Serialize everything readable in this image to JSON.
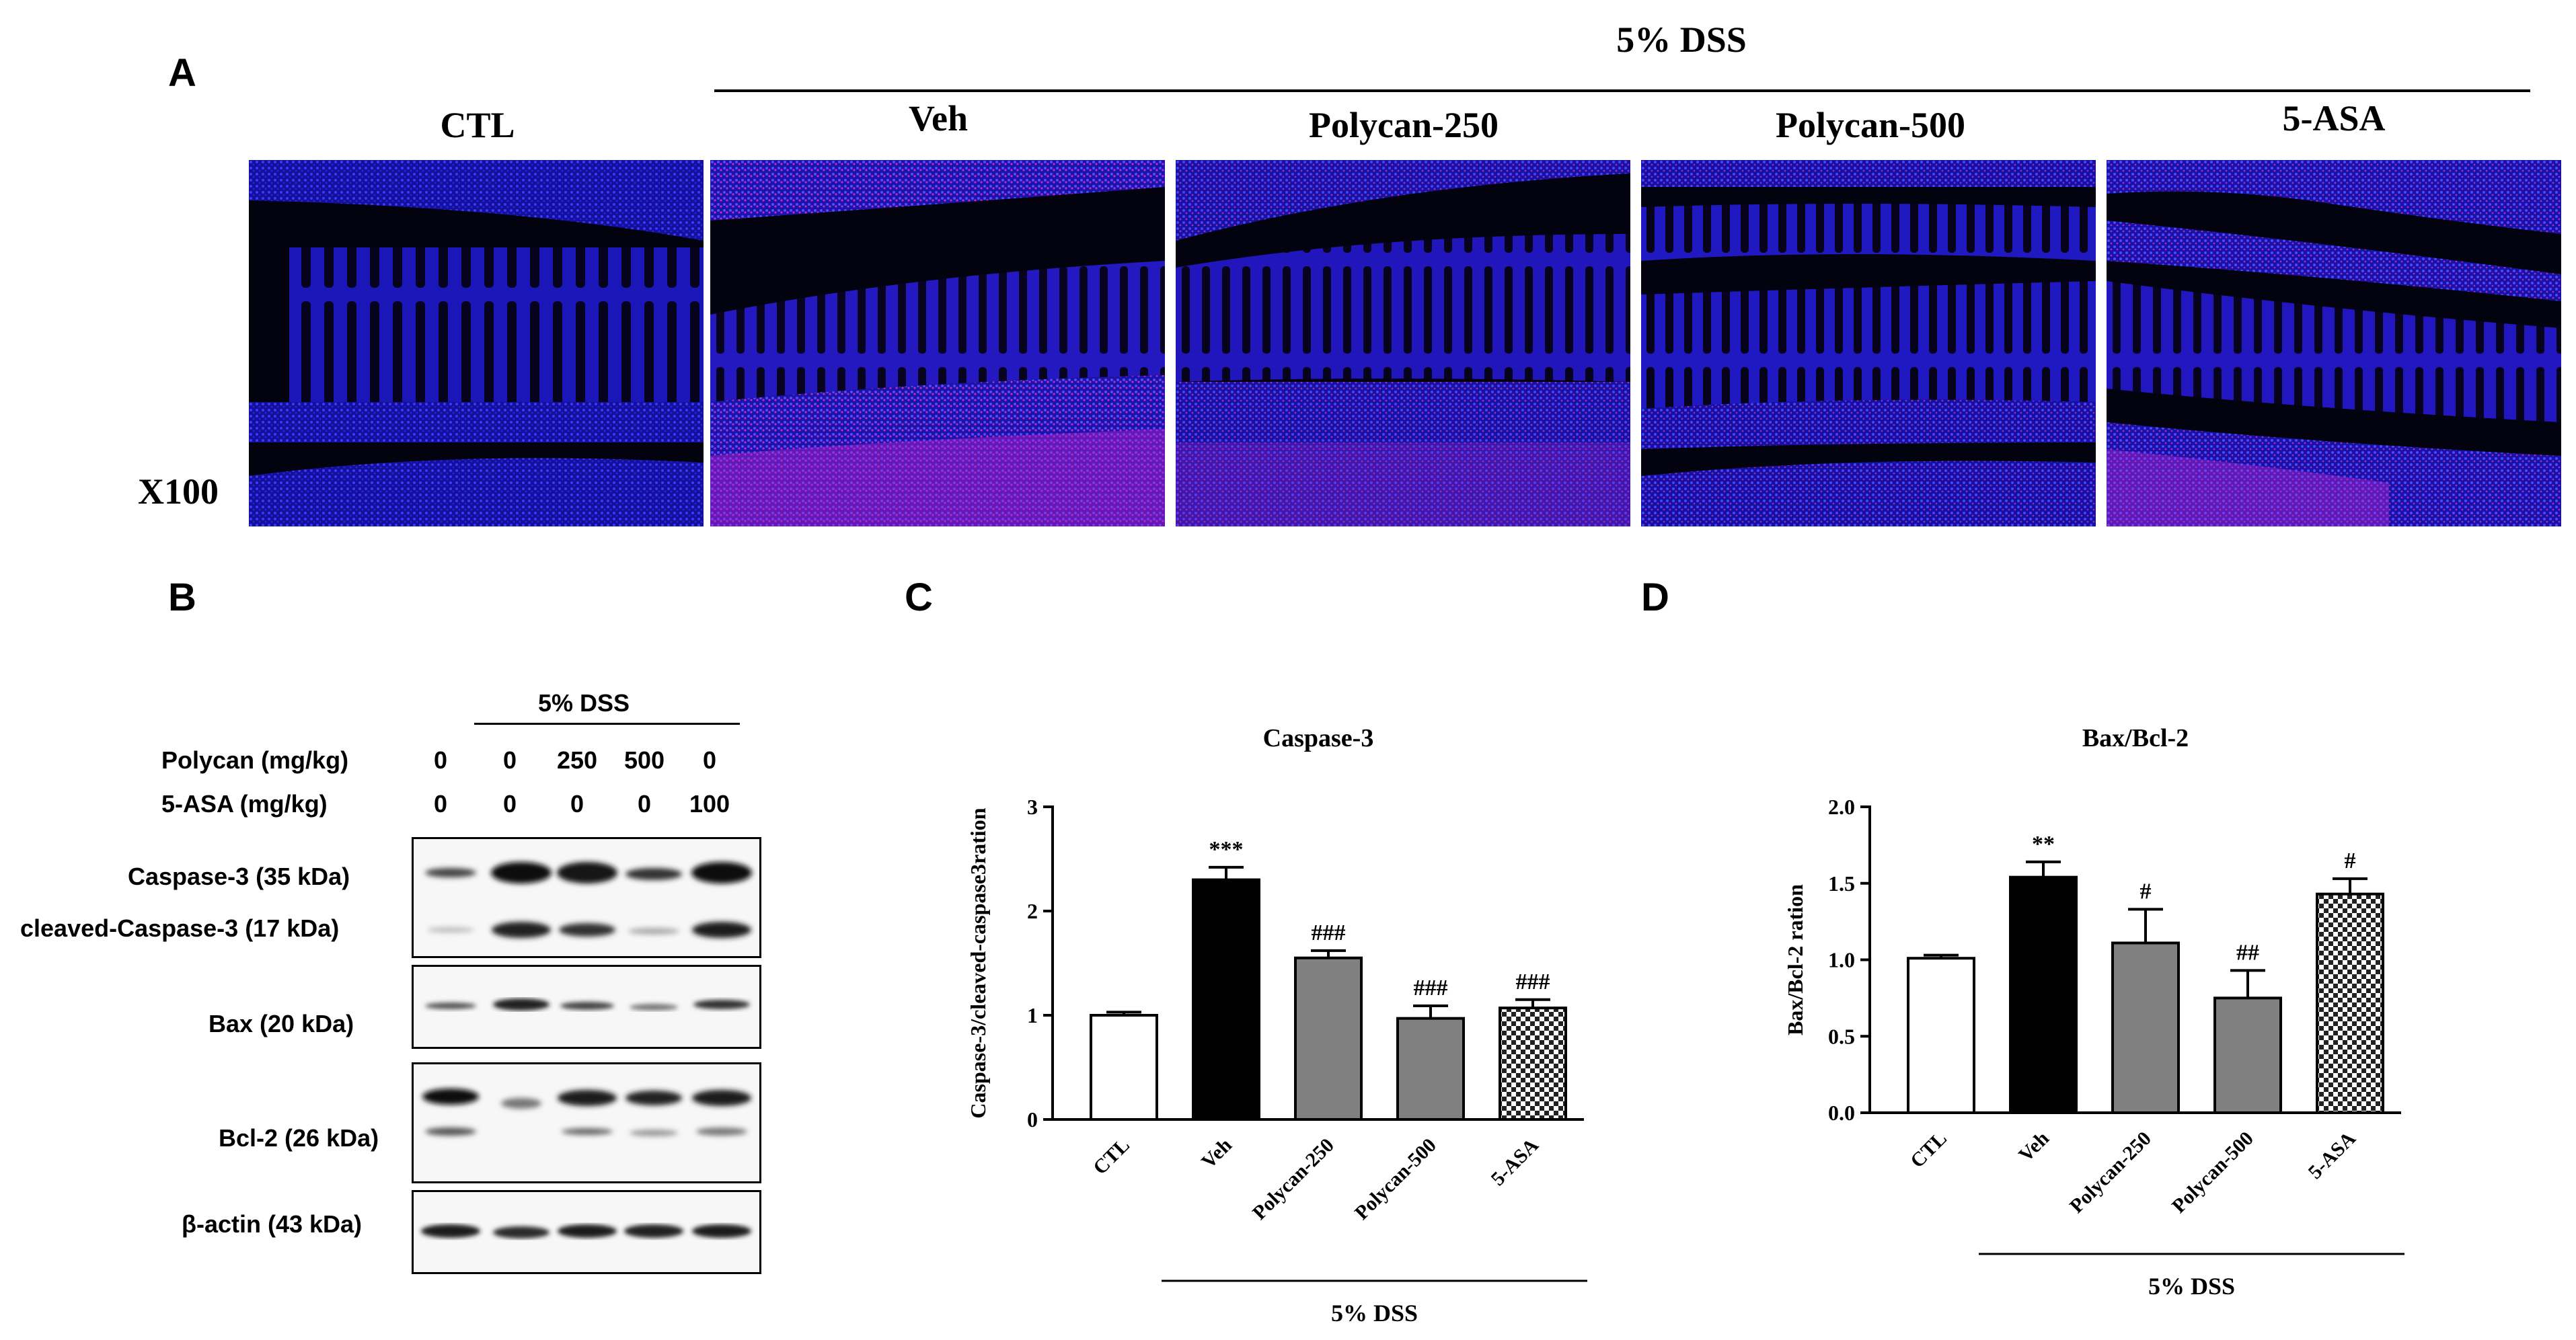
{
  "panels": {
    "a": "A",
    "b": "B",
    "c": "C",
    "d": "D"
  },
  "panel_a": {
    "dss_label": "5% DSS",
    "magnification": "X100",
    "columns": [
      "CTL",
      "Veh",
      "Polycan-250",
      "Polycan-500",
      "5-ASA"
    ]
  },
  "panel_b": {
    "dss_label": "5% DSS",
    "row_labels": {
      "polycan": "Polycan (mg/kg)",
      "asa": "5-ASA (mg/kg)"
    },
    "polycan_doses": [
      "0",
      "0",
      "250",
      "500",
      "0"
    ],
    "asa_doses": [
      "0",
      "0",
      "0",
      "0",
      "100"
    ],
    "bands": [
      "Caspase-3 (35 kDa)",
      "cleaved-Caspase-3 (17 kDa)",
      "Bax (20 kDa)",
      "Bcl-2 (26 kDa)",
      "β-actin (43 kDa)"
    ]
  },
  "chart_data": [
    {
      "type": "bar",
      "title": "Caspase-3",
      "ylabel": "Caspase-3/cleaved-caspase3ration",
      "xlabel": "",
      "group_label": "5% DSS",
      "categories": [
        "CTL",
        "Veh",
        "Polycan-250",
        "Polycan-500",
        "5-ASA"
      ],
      "values": [
        1.0,
        2.3,
        1.55,
        0.97,
        1.07
      ],
      "errors": [
        0.03,
        0.12,
        0.07,
        0.12,
        0.08
      ],
      "annotations": [
        "",
        "***",
        "###",
        "###",
        "###"
      ],
      "fills": [
        "white",
        "black",
        "gray",
        "gray",
        "checker"
      ],
      "ylim": [
        0,
        3
      ],
      "yticks": [
        "0",
        "1",
        "2",
        "3"
      ]
    },
    {
      "type": "bar",
      "title": "Bax/Bcl-2",
      "ylabel": "Bax/Bcl-2 ration",
      "xlabel": "",
      "group_label": "5% DSS",
      "categories": [
        "CTL",
        "Veh",
        "Polycan-250",
        "Polycan-500",
        "5-ASA"
      ],
      "values": [
        1.01,
        1.54,
        1.11,
        0.75,
        1.43
      ],
      "errors": [
        0.02,
        0.1,
        0.22,
        0.18,
        0.1
      ],
      "annotations": [
        "",
        "**",
        "#",
        "##",
        "#"
      ],
      "fills": [
        "white",
        "black",
        "gray",
        "gray",
        "checker"
      ],
      "ylim": [
        0,
        2
      ],
      "yticks": [
        "0.0",
        "0.5",
        "1.0",
        "1.5",
        "2.0"
      ]
    }
  ],
  "colors": {
    "bar_gray": "#808080",
    "bar_black": "#000000",
    "stain_blue": "#2b2bff",
    "stain_magenta": "#d52ad6"
  }
}
